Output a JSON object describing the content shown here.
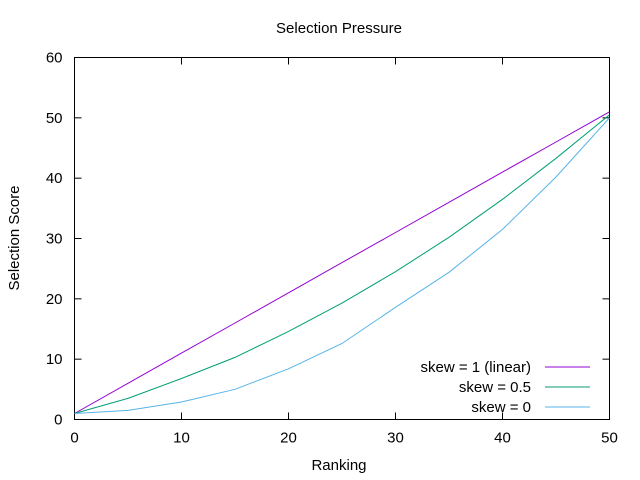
{
  "chart_data": {
    "type": "line",
    "title": "Selection Pressure",
    "xlabel": "Ranking",
    "ylabel": "Selection Score",
    "xlim": [
      0,
      50
    ],
    "ylim": [
      0,
      60
    ],
    "x_ticks": [
      0,
      10,
      20,
      30,
      40,
      50
    ],
    "y_ticks": [
      0,
      10,
      20,
      30,
      40,
      50,
      60
    ],
    "grid": false,
    "legend_position": "bottom-right",
    "x": [
      0,
      5,
      10,
      15,
      20,
      25,
      30,
      35,
      40,
      45,
      50
    ],
    "series": [
      {
        "name": "skew = 1 (linear)",
        "color": "#9400d3",
        "values": [
          1,
          6,
          11,
          16,
          21,
          26,
          31,
          36,
          41,
          46,
          51
        ]
      },
      {
        "name": "skew = 0.5",
        "color": "#009e73",
        "values": [
          1,
          3.5,
          6.8,
          10.3,
          14.6,
          19.3,
          24.5,
          30.2,
          36.5,
          43.3,
          50.5
        ]
      },
      {
        "name": "skew = 0",
        "color": "#56b4e9",
        "values": [
          1,
          1.5,
          2.9,
          5.0,
          8.4,
          12.6,
          18.6,
          24.4,
          31.5,
          40.2,
          50
        ]
      }
    ]
  }
}
